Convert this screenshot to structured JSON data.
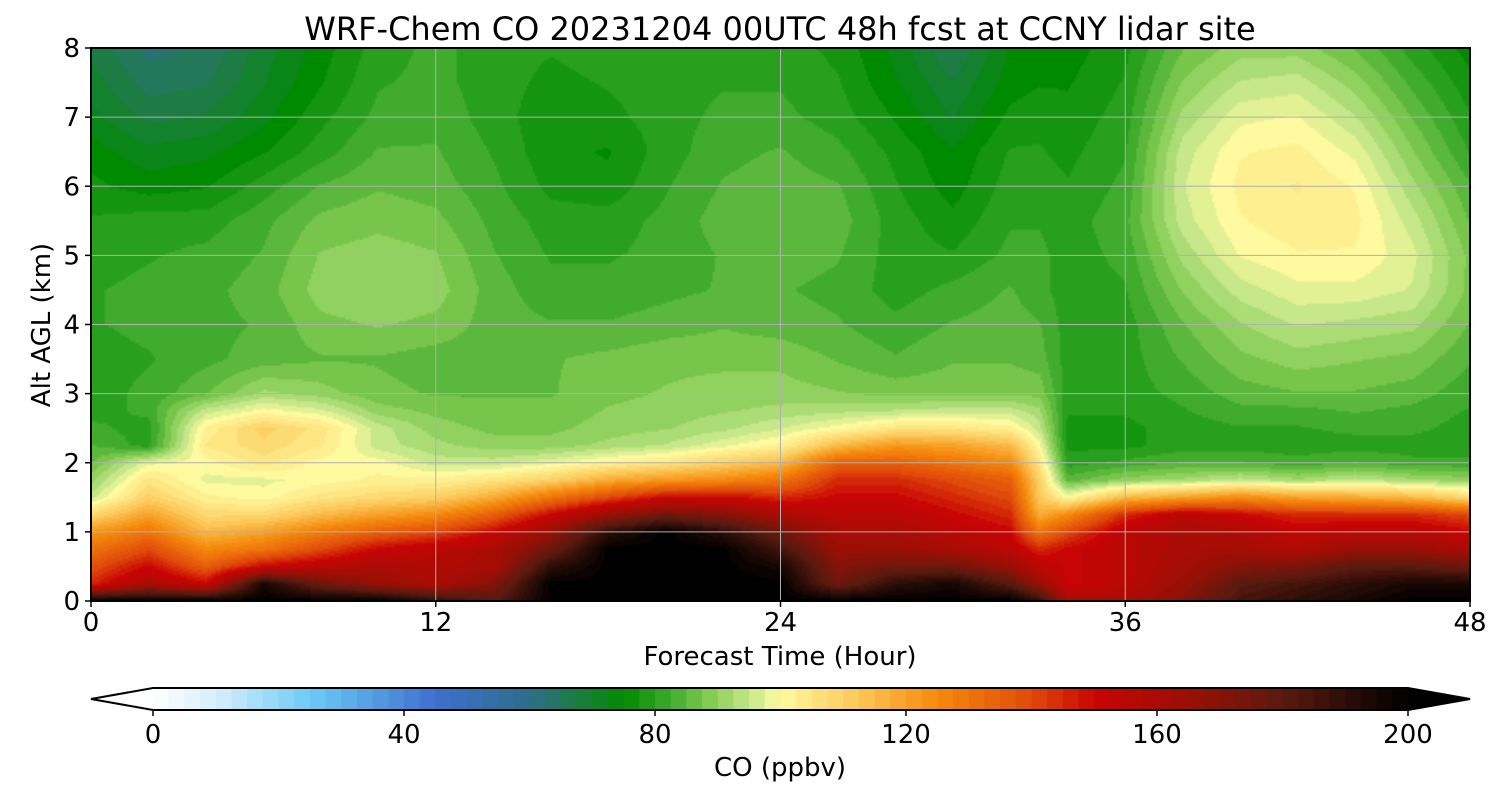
{
  "chart_data": {
    "type": "heatmap",
    "subtype": "filled-contour time-height cross section",
    "title": "WRF-Chem CO  20231204 00UTC 48h fcst at CCNY lidar site",
    "xlabel": "Forecast Time (Hour)",
    "ylabel": "Alt AGL (km)",
    "xlim": [
      0,
      48
    ],
    "ylim": [
      0,
      8
    ],
    "xticks": [
      0,
      12,
      24,
      36,
      48
    ],
    "yticks": [
      0,
      1,
      2,
      3,
      4,
      5,
      6,
      7,
      8
    ],
    "grid": true,
    "colorbar": {
      "label": "CO  (ppbv)",
      "orientation": "horizontal",
      "placement": "bottom",
      "range": [
        0,
        200
      ],
      "ticks": [
        0,
        40,
        80,
        120,
        160,
        200
      ],
      "extend": "both",
      "color_stops": [
        {
          "value": 0,
          "color": "#ffffff"
        },
        {
          "value": 10,
          "color": "#d6eefb"
        },
        {
          "value": 25,
          "color": "#6ccbf5"
        },
        {
          "value": 45,
          "color": "#3e6fcf"
        },
        {
          "value": 60,
          "color": "#2f6c8a"
        },
        {
          "value": 68,
          "color": "#1b7d3f"
        },
        {
          "value": 75,
          "color": "#008a00"
        },
        {
          "value": 82,
          "color": "#3aa82a"
        },
        {
          "value": 88,
          "color": "#7cc84e"
        },
        {
          "value": 95,
          "color": "#c6e78a"
        },
        {
          "value": 100,
          "color": "#fffaa0"
        },
        {
          "value": 112,
          "color": "#fcc95a"
        },
        {
          "value": 125,
          "color": "#f58a0c"
        },
        {
          "value": 140,
          "color": "#e04a0a"
        },
        {
          "value": 150,
          "color": "#c80404"
        },
        {
          "value": 165,
          "color": "#9a0f05"
        },
        {
          "value": 180,
          "color": "#5a1a10"
        },
        {
          "value": 200,
          "color": "#000000"
        }
      ]
    },
    "x_hours": [
      0,
      2,
      4,
      6,
      8,
      10,
      12,
      14,
      16,
      18,
      20,
      22,
      24,
      26,
      28,
      30,
      32,
      33,
      34,
      36,
      38,
      40,
      42,
      44,
      46,
      48
    ],
    "heights_km": [
      0,
      0.25,
      0.5,
      0.75,
      1.0,
      1.25,
      1.5,
      1.75,
      2.0,
      2.25,
      2.5,
      2.75,
      3.0,
      3.5,
      4.0,
      4.5,
      5.0,
      5.5,
      6.0,
      6.5,
      7.0,
      7.5,
      8.0
    ],
    "co_ppbv": [
      [
        200,
        200,
        200,
        200,
        200,
        200,
        190,
        180,
        200,
        200,
        200,
        200,
        200,
        200,
        200,
        200,
        200,
        190,
        160,
        160,
        170,
        185,
        190,
        195,
        200,
        200
      ],
      [
        145,
        160,
        150,
        195,
        175,
        165,
        160,
        170,
        200,
        200,
        200,
        200,
        200,
        175,
        190,
        195,
        180,
        165,
        150,
        155,
        165,
        180,
        185,
        190,
        195,
        195
      ],
      [
        138,
        150,
        135,
        150,
        155,
        160,
        158,
        160,
        190,
        200,
        200,
        200,
        195,
        170,
        175,
        175,
        165,
        155,
        150,
        155,
        162,
        170,
        172,
        180,
        180,
        175
      ],
      [
        130,
        140,
        125,
        130,
        140,
        150,
        155,
        160,
        175,
        200,
        200,
        200,
        185,
        165,
        165,
        160,
        155,
        145,
        150,
        155,
        160,
        162,
        158,
        165,
        165,
        160
      ],
      [
        122,
        130,
        115,
        120,
        128,
        135,
        140,
        150,
        165,
        190,
        200,
        190,
        175,
        160,
        160,
        155,
        150,
        130,
        140,
        155,
        160,
        158,
        152,
        155,
        155,
        150
      ],
      [
        108,
        120,
        108,
        108,
        115,
        120,
        125,
        135,
        150,
        165,
        175,
        170,
        160,
        155,
        155,
        150,
        145,
        118,
        125,
        145,
        155,
        150,
        145,
        145,
        145,
        140
      ],
      [
        95,
        110,
        102,
        100,
        105,
        108,
        110,
        118,
        130,
        140,
        150,
        150,
        145,
        150,
        150,
        145,
        140,
        112,
        100,
        115,
        120,
        125,
        120,
        118,
        115,
        108
      ],
      [
        90,
        105,
        98,
        98,
        100,
        102,
        102,
        105,
        110,
        118,
        122,
        125,
        130,
        145,
        145,
        140,
        135,
        110,
        85,
        90,
        92,
        95,
        92,
        95,
        92,
        90
      ],
      [
        86,
        98,
        100,
        105,
        100,
        100,
        95,
        95,
        98,
        102,
        105,
        110,
        115,
        135,
        135,
        130,
        125,
        105,
        80,
        82,
        84,
        84,
        82,
        84,
        82,
        82
      ],
      [
        84,
        80,
        104,
        108,
        104,
        95,
        92,
        90,
        90,
        92,
        94,
        98,
        102,
        115,
        122,
        120,
        115,
        100,
        78,
        78,
        80,
        80,
        80,
        80,
        80,
        80
      ],
      [
        82,
        80,
        102,
        110,
        105,
        95,
        90,
        88,
        88,
        90,
        91,
        93,
        96,
        100,
        105,
        105,
        102,
        95,
        78,
        78,
        80,
        81,
        81,
        82,
        82,
        80
      ],
      [
        80,
        82,
        95,
        100,
        97,
        90,
        88,
        87,
        87,
        89,
        90,
        91,
        92,
        93,
        94,
        95,
        95,
        92,
        79,
        79,
        81,
        83,
        83,
        84,
        83,
        81
      ],
      [
        80,
        82,
        86,
        92,
        90,
        87,
        86,
        86,
        86,
        88,
        89,
        90,
        90,
        89,
        88,
        88,
        88,
        88,
        80,
        80,
        82,
        85,
        86,
        86,
        85,
        82
      ],
      [
        80,
        81,
        83,
        85,
        86,
        86,
        85,
        85,
        86,
        87,
        88,
        88,
        88,
        86,
        84,
        86,
        86,
        85,
        80,
        80,
        84,
        88,
        90,
        89,
        88,
        84
      ],
      [
        81,
        82,
        83,
        84,
        88,
        89,
        88,
        85,
        84,
        84,
        85,
        86,
        85,
        84,
        82,
        84,
        85,
        84,
        80,
        80,
        86,
        91,
        94,
        93,
        92,
        86
      ],
      [
        81,
        82,
        83,
        85,
        90,
        91,
        90,
        85,
        82,
        82,
        83,
        84,
        84,
        83,
        80,
        82,
        84,
        82,
        80,
        81,
        89,
        95,
        98,
        98,
        96,
        88
      ],
      [
        80,
        81,
        82,
        84,
        89,
        90,
        89,
        84,
        81,
        81,
        82,
        84,
        85,
        84,
        80,
        79,
        82,
        82,
        80,
        82,
        92,
        99,
        101,
        101,
        97,
        88
      ],
      [
        79,
        80,
        80,
        83,
        87,
        88,
        87,
        83,
        80,
        80,
        82,
        85,
        86,
        85,
        80,
        77,
        81,
        81,
        80,
        83,
        95,
        101,
        103,
        102,
        95,
        86
      ],
      [
        77,
        75,
        76,
        80,
        84,
        86,
        85,
        82,
        78,
        77,
        81,
        84,
        85,
        84,
        79,
        75,
        80,
        80,
        79,
        82,
        96,
        102,
        104,
        101,
        92,
        84
      ],
      [
        75,
        72,
        73,
        76,
        80,
        84,
        84,
        81,
        77,
        76,
        80,
        83,
        84,
        82,
        78,
        74,
        79,
        79,
        78,
        81,
        95,
        101,
        102,
        98,
        89,
        81
      ],
      [
        72,
        68,
        69,
        73,
        78,
        82,
        83,
        80,
        77,
        78,
        80,
        82,
        82,
        80,
        76,
        71,
        77,
        78,
        77,
        80,
        92,
        98,
        99,
        94,
        86,
        79
      ],
      [
        70,
        65,
        66,
        71,
        76,
        81,
        82,
        80,
        78,
        79,
        80,
        81,
        81,
        79,
        74,
        69,
        75,
        76,
        76,
        79,
        89,
        94,
        95,
        90,
        83,
        77
      ],
      [
        68,
        63,
        64,
        70,
        75,
        80,
        82,
        80,
        79,
        80,
        80,
        80,
        80,
        78,
        73,
        66,
        74,
        75,
        75,
        78,
        86,
        90,
        90,
        86,
        80,
        75
      ]
    ]
  }
}
